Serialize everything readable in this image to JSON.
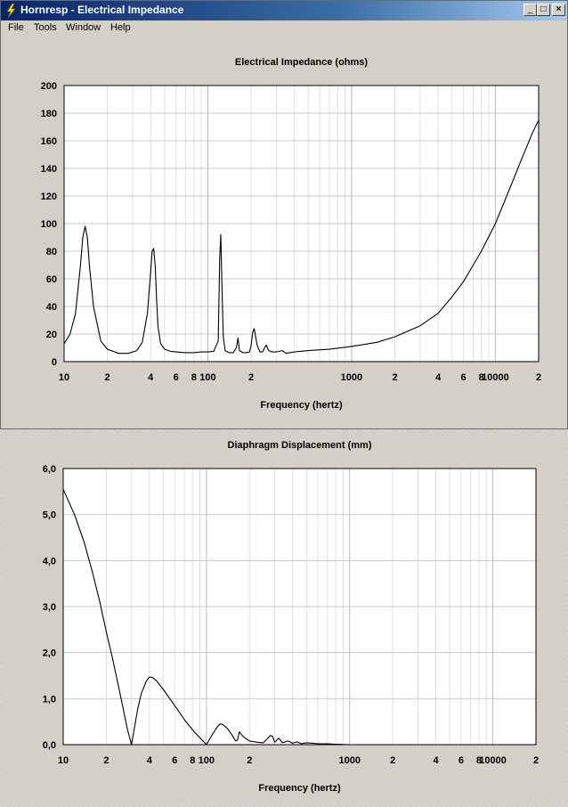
{
  "window": {
    "title": "Hornresp - Electrical Impedance",
    "icon": "lightning-bolt-icon",
    "controls": {
      "minimize": "_",
      "maximize": "□",
      "close": "×"
    }
  },
  "menu": {
    "items": [
      "File",
      "Tools",
      "Window",
      "Help"
    ]
  },
  "colors": {
    "titlebar_start": "#0a246a",
    "titlebar_end": "#a6caf0",
    "plot_bg": "#ffffff",
    "face": "#d4d0c8",
    "grid": "#c8c8c8",
    "curve": "#000000"
  },
  "chart_data": [
    {
      "type": "line",
      "title": "Electrical Impedance (ohms)",
      "xlabel": "Frequency (hertz)",
      "ylabel": "",
      "x_scale": "log",
      "xlim": [
        10,
        20000
      ],
      "ylim": [
        0,
        200
      ],
      "x_ticks": [
        10,
        20,
        40,
        60,
        80,
        100,
        200,
        1000,
        2000,
        4000,
        6000,
        8000,
        10000,
        20000
      ],
      "x_tick_labels": [
        "10",
        "2",
        "4",
        "6",
        "8",
        "100",
        "2",
        "1000",
        "2",
        "4",
        "6",
        "8",
        "10000",
        "2"
      ],
      "y_ticks": [
        0,
        20,
        40,
        60,
        80,
        100,
        120,
        140,
        160,
        180,
        200
      ],
      "y_tick_labels": [
        "0",
        "20",
        "40",
        "60",
        "80",
        "100",
        "120",
        "140",
        "160",
        "180",
        "200"
      ],
      "grid": true,
      "series": [
        {
          "x": [
            10,
            11,
            12,
            13,
            13.5,
            14,
            14.5,
            15,
            16,
            18,
            20,
            24,
            28,
            32,
            35,
            38,
            40,
            41,
            42,
            43,
            44,
            45,
            47,
            50,
            55,
            60,
            70,
            80,
            90,
            100,
            110,
            118,
            121,
            123,
            125,
            128,
            132,
            140,
            150,
            158,
            162,
            166,
            175,
            185,
            195,
            200,
            205,
            210,
            220,
            230,
            240,
            248,
            255,
            265,
            280,
            300,
            330,
            350,
            400,
            500,
            700,
            1000,
            1500,
            2000,
            3000,
            4000,
            5000,
            6000,
            8000,
            10000,
            12000,
            15000,
            18000,
            20000
          ],
          "y": [
            13,
            20,
            35,
            70,
            90,
            98,
            90,
            70,
            40,
            15,
            9,
            6,
            6,
            8,
            14,
            35,
            65,
            80,
            82,
            70,
            45,
            25,
            13,
            9,
            7.5,
            7,
            6.5,
            6.5,
            7,
            7,
            7.5,
            15,
            75,
            92,
            60,
            18,
            8,
            6.5,
            6.5,
            10,
            17,
            8,
            6.5,
            6.5,
            7,
            12,
            21,
            24,
            12,
            7,
            7,
            10,
            12,
            8,
            7,
            7,
            8,
            6,
            7,
            8,
            9,
            11,
            14,
            18,
            26,
            35,
            47,
            58,
            80,
            100,
            120,
            145,
            165,
            175
          ]
        }
      ]
    },
    {
      "type": "line",
      "title": "Diaphragm Displacement (mm)",
      "xlabel": "Frequency (hertz)",
      "ylabel": "",
      "x_scale": "log",
      "xlim": [
        10,
        20000
      ],
      "ylim": [
        0,
        6
      ],
      "x_ticks": [
        10,
        20,
        40,
        60,
        80,
        100,
        200,
        1000,
        2000,
        4000,
        6000,
        8000,
        10000,
        20000
      ],
      "x_tick_labels": [
        "10",
        "2",
        "4",
        "6",
        "8",
        "100",
        "2",
        "1000",
        "2",
        "4",
        "6",
        "8",
        "10000",
        "2"
      ],
      "y_ticks": [
        0,
        1,
        2,
        3,
        4,
        5,
        6
      ],
      "y_tick_labels": [
        "0,0",
        "1,0",
        "2,0",
        "3,0",
        "4,0",
        "5,0",
        "6,0"
      ],
      "grid": true,
      "series": [
        {
          "x": [
            10,
            12,
            14,
            16,
            18,
            20,
            22,
            25,
            28,
            30,
            31,
            33,
            35,
            38,
            40,
            42,
            45,
            50,
            60,
            70,
            80,
            90,
            100,
            110,
            120,
            125,
            130,
            140,
            150,
            160,
            165,
            170,
            175,
            185,
            200,
            230,
            250,
            280,
            290,
            300,
            320,
            340,
            370,
            400,
            430,
            460,
            500,
            550,
            600,
            700,
            800,
            1000
          ],
          "y": [
            5.55,
            5.0,
            4.4,
            3.75,
            3.1,
            2.45,
            1.9,
            1.1,
            0.35,
            0.0,
            0.25,
            0.75,
            1.1,
            1.38,
            1.47,
            1.46,
            1.38,
            1.2,
            0.85,
            0.55,
            0.32,
            0.15,
            0.0,
            0.22,
            0.4,
            0.45,
            0.44,
            0.35,
            0.22,
            0.08,
            0.1,
            0.28,
            0.22,
            0.15,
            0.08,
            0.05,
            0.04,
            0.2,
            0.18,
            0.05,
            0.14,
            0.04,
            0.08,
            0.03,
            0.06,
            0.02,
            0.04,
            0.03,
            0.02,
            0.02,
            0.01,
            0.0
          ]
        }
      ]
    }
  ]
}
